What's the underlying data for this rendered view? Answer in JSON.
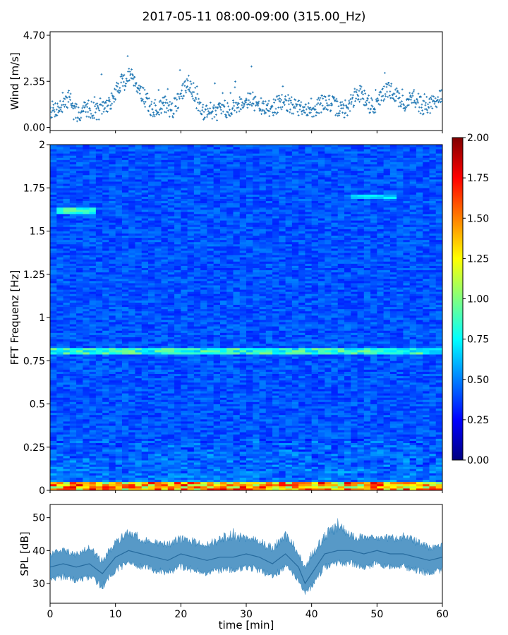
{
  "title": "2017-05-11 08:00-09:00 (315.00_Hz)",
  "chart_data": [
    {
      "panel": "wind",
      "type": "scatter",
      "ylabel": "Wind [m/s]",
      "xlim": [
        0,
        60
      ],
      "ylim": [
        0,
        4.7
      ],
      "yticks": [
        "0.00",
        "2.35",
        "4.70"
      ],
      "color": "#1f77b4",
      "x": [
        0.5,
        1.5,
        2.5,
        3.0,
        3.5,
        4.5,
        5.5,
        6.5,
        7.5,
        8.5,
        9.5,
        10.5,
        11.0,
        11.5,
        12.5,
        13.5,
        14.5,
        15.5,
        16.5,
        17.5,
        18.5,
        19.5,
        20.5,
        21.0,
        21.5,
        22.5,
        23.5,
        24.5,
        25.5,
        26.5,
        27.5,
        28.5,
        29.5,
        30.5,
        31.5,
        32.5,
        33.5,
        34.5,
        35.5,
        36.5,
        37.5,
        38.5,
        39.5,
        40.5,
        41.5,
        42.5,
        43.5,
        44.5,
        45.5,
        46.5,
        47.5,
        48.5,
        49.5,
        50.5,
        51.5,
        52.5,
        53.5,
        54.5,
        55.5,
        56.5,
        57.5,
        58.5,
        59.5
      ],
      "y": [
        0.9,
        1.0,
        1.2,
        1.8,
        0.8,
        0.7,
        1.0,
        0.9,
        0.8,
        1.1,
        1.3,
        2.1,
        2.5,
        2.3,
        2.8,
        2.0,
        1.5,
        0.9,
        1.0,
        1.2,
        0.8,
        1.3,
        1.9,
        2.4,
        2.2,
        1.3,
        0.8,
        0.9,
        0.8,
        0.9,
        1.0,
        1.1,
        1.3,
        1.5,
        1.2,
        1.0,
        0.9,
        1.1,
        1.3,
        1.2,
        1.0,
        0.9,
        0.8,
        1.0,
        1.2,
        1.3,
        1.1,
        0.9,
        1.0,
        1.5,
        1.8,
        1.3,
        1.0,
        1.5,
        1.9,
        1.8,
        1.4,
        1.1,
        1.6,
        1.2,
        1.0,
        1.2,
        1.6
      ]
    },
    {
      "panel": "spectrogram",
      "type": "heatmap",
      "ylabel": "FFT Frequenz [Hz]",
      "xlim": [
        0,
        60
      ],
      "ylim": [
        0,
        2
      ],
      "yticks": [
        "0",
        "0.25",
        "0.5",
        "0.75",
        "1",
        "1.25",
        "1.5",
        "1.75",
        "2"
      ],
      "colormap": "jet",
      "colorbar": {
        "vmin": 0.0,
        "vmax": 2.0,
        "ticks": [
          "0.00",
          "0.25",
          "0.50",
          "0.75",
          "1.00",
          "1.25",
          "1.50",
          "1.75",
          "2.00"
        ]
      },
      "features": [
        {
          "label": "base level",
          "freq_range": [
            0,
            2
          ],
          "value": 0.25
        },
        {
          "label": "low-frequency band",
          "freq_range": [
            0,
            0.05
          ],
          "value": 1.1
        },
        {
          "label": "band near 0.8 Hz",
          "freq": 0.81,
          "value": 0.6
        },
        {
          "label": "band near 1.62 Hz",
          "freq": 1.62,
          "time_range": [
            1,
            7
          ],
          "value": 0.6
        }
      ]
    },
    {
      "panel": "spl",
      "type": "line",
      "ylabel": "SPL [dB]",
      "xlabel": "time [min]",
      "xlim": [
        0,
        60
      ],
      "ylim": [
        24,
        54
      ],
      "yticks": [
        "30",
        "40",
        "50"
      ],
      "xticks": [
        "0",
        "10",
        "20",
        "30",
        "40",
        "50",
        "60"
      ],
      "color": "#1f77b4",
      "x": [
        0,
        2,
        4,
        6,
        8,
        10,
        12,
        14,
        16,
        18,
        20,
        22,
        24,
        26,
        28,
        30,
        32,
        34,
        36,
        38,
        39,
        40,
        42,
        44,
        46,
        48,
        50,
        52,
        54,
        56,
        58,
        60
      ],
      "y": [
        35,
        36,
        35,
        36,
        33,
        38,
        40,
        39,
        38,
        37,
        39,
        38,
        37,
        38,
        38,
        39,
        38,
        36,
        39,
        35,
        30,
        33,
        39,
        40,
        40,
        39,
        40,
        39,
        39,
        38,
        37,
        38
      ],
      "y_min": [
        30,
        31,
        30,
        31,
        28,
        33,
        35,
        34,
        33,
        32,
        34,
        33,
        32,
        33,
        33,
        34,
        33,
        31,
        34,
        30,
        26,
        28,
        34,
        35,
        35,
        34,
        35,
        34,
        34,
        33,
        32,
        33
      ],
      "y_max": [
        40,
        41,
        40,
        42,
        38,
        44,
        47,
        45,
        44,
        43,
        45,
        44,
        43,
        45,
        47,
        45,
        44,
        42,
        46,
        41,
        36,
        40,
        46,
        50,
        46,
        45,
        45,
        45,
        46,
        44,
        42,
        43
      ]
    }
  ]
}
